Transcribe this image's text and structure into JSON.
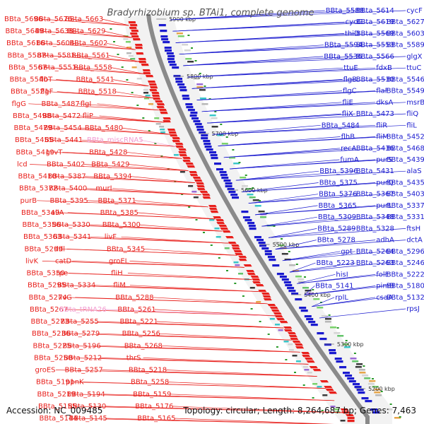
{
  "title": "Bradyrhizobium sp. BTAi1, complete genome",
  "footer": {
    "accession": "Accession: NC_009485",
    "topology": "Topology: circular; Length: 8,264,687 bp; Genes: 7,463"
  },
  "colors": {
    "plus_strand": "#e8201c",
    "minus_strand": "#1a1acf",
    "backbone": "#8a8a8a",
    "rna_label": "#f29ad0",
    "tick_dot": "#2a9a2a"
  },
  "ticks": [
    "5200 kbp",
    "5300 kbp",
    "5400 kbp",
    "5500 kbp",
    "5600 kbp",
    "5700 kbp",
    "5800 kbp",
    "5900 kbp"
  ],
  "labels_left": [
    "BBta_5696",
    "BBta_5676",
    "BBta_5663",
    "BBta_5649",
    "BBta_5638",
    "BBta_5629",
    "BBta_5616",
    "BBta_5604",
    "BBta_5602",
    "BBta_5587",
    "BBta_5581",
    "BBta_5561",
    "BBta_5567",
    "BBta_5551",
    "BBta_5558",
    "BBta_5540",
    "flbT",
    "BBta_5541",
    "BBta_5521",
    "flgF",
    "BBta_5518",
    "flgG",
    "BBta_5487",
    "flgI",
    "BBta_5498",
    "BBta_5472",
    "fliP",
    "BBta_5479",
    "BBta_5454",
    "BBta_5480",
    "BBta_5455",
    "BBta_5441",
    "BBta_miscRNA5",
    "BBta_5419",
    "gcvT",
    "BBta_5428",
    "lcd",
    "BBta_5402",
    "BBta_5429",
    "BBta_5410",
    "BBta_5387",
    "BBta_5394",
    "BBta_5372",
    "BBta_5400",
    "murI",
    "purB",
    "BBta_5395",
    "BBta_5371",
    "BBta_5349",
    "allA",
    "BBta_5385",
    "BBta_5356",
    "BBta_5330",
    "BBta_5300",
    "BBta_5363",
    "BBta_5341",
    "livF",
    "BBta_5299",
    "ddl",
    "BBta_5345",
    "livK",
    "catD",
    "groEL",
    "BBta_5350",
    "rpe",
    "fliH",
    "BBta_5295",
    "BBta_5334",
    "fliM",
    "BBta_5274",
    "livG",
    "BBta_5288",
    "BBta_5267",
    "BBta_tRNA26",
    "BBta_5261",
    "BBta_5273",
    "BBta_5255",
    "BBta_5221",
    "BBta_5236",
    "BBta_5279",
    "BBta_5256",
    "BBta_5225",
    "BBta_5196",
    "BBta_5268",
    "BBta_5250",
    "BBta_5212",
    "thrS",
    "groES",
    "BBta_5257",
    "BBta_5218",
    "BBta_5191",
    "ppnK",
    "BBta_5258",
    "BBta_5219",
    "BBta_5194",
    "BBta_5159",
    "BBta_5155",
    "BBta_5130",
    "BBta_5176",
    "BBta_5144",
    "BBta_5145",
    "BBta_5165"
  ],
  "labels_right": [
    "cycF",
    "BBta_5614",
    "BBta_5588",
    "BBta_5627",
    "BBta_5619",
    "cycG",
    "BBta_5603",
    "BBta_5569",
    "thiD",
    "BBta_5589",
    "BBta_5553",
    "BBta_5594",
    "glgX",
    "BBta_5566",
    "BBta_5536",
    "ttuC",
    "fdxB",
    "ttuE",
    "BBta_5546",
    "BBta_5530",
    "flgB",
    "BBta_5549",
    "flaF",
    "flgC",
    "msrB",
    "dksA",
    "fliE",
    "fliQ",
    "BBta_5473",
    "fliX",
    "fliL",
    "fliR",
    "BBta_5484",
    "BBta_5452",
    "fliM",
    "flhB",
    "BBta_5468",
    "BBta_5436",
    "recA",
    "BBta_5439",
    "purS",
    "fumA",
    "alaS",
    "BBta_5431",
    "BBta_5396",
    "BBta_5435",
    "purQ",
    "BBta_5375",
    "BBta_5403",
    "BBta_5367",
    "BBta_5376",
    "BBta_5337",
    "purL",
    "BBta_5365",
    "BBta_5331",
    "BBta_5348",
    "BBta_5309",
    "ftsH",
    "BBta_5328",
    "BBta_5289",
    "dctA",
    "adhA",
    "BBta_5278",
    "BBta_5296",
    "BBta_5264",
    "gpt",
    "BBta_5246",
    "BBta_5263",
    "BBta_5223",
    "BBta_5222",
    "folE",
    "hisI",
    "BBta_5180",
    "pimB",
    "BBta_5141",
    "BBta_5132",
    "csaA",
    "rplL",
    "rpsJ"
  ]
}
